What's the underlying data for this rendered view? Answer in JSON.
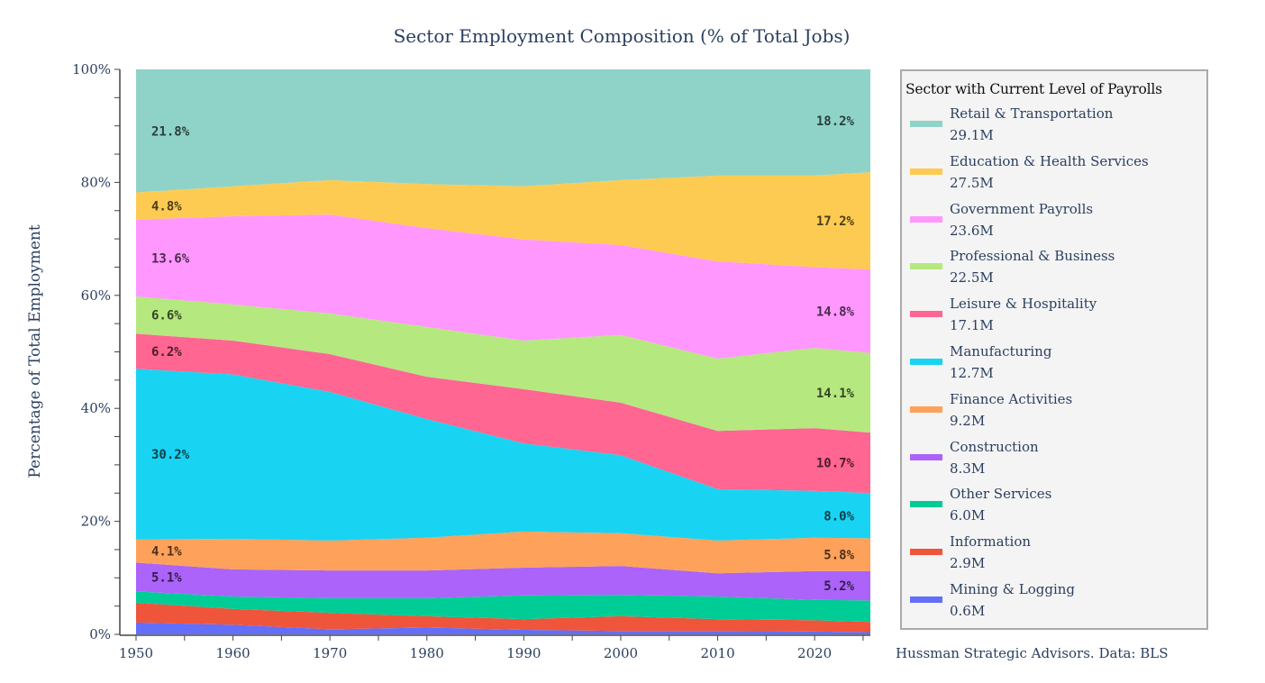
{
  "chart_data": {
    "type": "area",
    "stacked": true,
    "title": "Sector Employment Composition (% of Total Jobs)",
    "xlabel": "",
    "ylabel": "Percentage of Total Employment",
    "xlim": [
      1950,
      2025
    ],
    "ylim": [
      0,
      100
    ],
    "x_ticks": [
      1950,
      1960,
      1970,
      1980,
      1990,
      2000,
      2010,
      2020
    ],
    "y_ticks": [
      "0%",
      "20%",
      "40%",
      "60%",
      "80%",
      "100%"
    ],
    "grid": true,
    "legend_title": "Sector with Current Level of Payrolls",
    "legend_placement": "right",
    "x": [
      1950,
      1960,
      1970,
      1980,
      1990,
      2000,
      2010,
      2020,
      2025
    ],
    "series": [
      {
        "name": "Mining & Logging",
        "current": "0.6M",
        "color": "#636efa",
        "values": [
          2.1,
          1.7,
          0.9,
          1.2,
          0.8,
          0.6,
          0.6,
          0.5,
          0.4
        ],
        "start_label": "",
        "end_label": ""
      },
      {
        "name": "Information",
        "current": "2.9M",
        "color": "#ef553b",
        "values": [
          3.5,
          2.8,
          2.9,
          2.0,
          1.9,
          2.6,
          2.1,
          2.0,
          1.8
        ],
        "start_label": "",
        "end_label": ""
      },
      {
        "name": "Other Services",
        "current": "6.0M",
        "color": "#00cc96",
        "values": [
          2.0,
          2.2,
          2.6,
          3.2,
          4.2,
          3.8,
          4.0,
          3.6,
          3.8
        ],
        "start_label": "",
        "end_label": ""
      },
      {
        "name": "Construction",
        "current": "8.3M",
        "color": "#ab63fa",
        "values": [
          5.1,
          4.8,
          4.9,
          4.9,
          4.9,
          5.1,
          4.1,
          5.1,
          5.2
        ],
        "start_label": "5.1%",
        "end_label": "5.2%"
      },
      {
        "name": "Finance Activities",
        "current": "9.2M",
        "color": "#fea15a",
        "values": [
          4.1,
          5.4,
          5.3,
          5.8,
          6.4,
          5.8,
          5.8,
          5.9,
          5.8
        ],
        "start_label": "4.1%",
        "end_label": "5.8%"
      },
      {
        "name": "Manufacturing",
        "current": "12.7M",
        "color": "#19d3f3",
        "values": [
          30.2,
          29.1,
          26.3,
          21.0,
          15.6,
          13.8,
          9.1,
          8.3,
          8.0
        ],
        "start_label": "30.2%",
        "end_label": "8.0%"
      },
      {
        "name": "Leisure & Hospitality",
        "current": "17.1M",
        "color": "#ff6692",
        "values": [
          6.2,
          6.0,
          6.7,
          7.5,
          9.6,
          9.3,
          10.3,
          11.1,
          10.7
        ],
        "start_label": "6.2%",
        "end_label": "10.7%"
      },
      {
        "name": "Professional & Business",
        "current": "22.5M",
        "color": "#b6e880",
        "values": [
          6.6,
          6.4,
          7.2,
          8.8,
          8.6,
          12.0,
          12.8,
          14.2,
          14.1
        ],
        "start_label": "6.6%",
        "end_label": "14.1%"
      },
      {
        "name": "Government Payrolls",
        "current": "23.6M",
        "color": "#ff97ff",
        "values": [
          13.6,
          15.6,
          17.5,
          17.5,
          17.9,
          15.9,
          17.2,
          14.3,
          14.8
        ],
        "start_label": "13.6%",
        "end_label": "14.8%"
      },
      {
        "name": "Education & Health Services",
        "current": "27.5M",
        "color": "#fecb52",
        "values": [
          4.8,
          5.3,
          6.1,
          7.8,
          9.4,
          11.5,
          15.2,
          16.2,
          17.2
        ],
        "start_label": "4.8%",
        "end_label": "17.2%"
      },
      {
        "name": "Retail & Transportation",
        "current": "29.1M",
        "color": "#8fd3c8",
        "values": [
          21.8,
          20.7,
          19.6,
          20.3,
          20.7,
          19.6,
          18.8,
          18.8,
          18.2
        ],
        "start_label": "21.8%",
        "end_label": "18.2%"
      }
    ]
  },
  "source": "Hussman Strategic Advisors. Data: BLS"
}
